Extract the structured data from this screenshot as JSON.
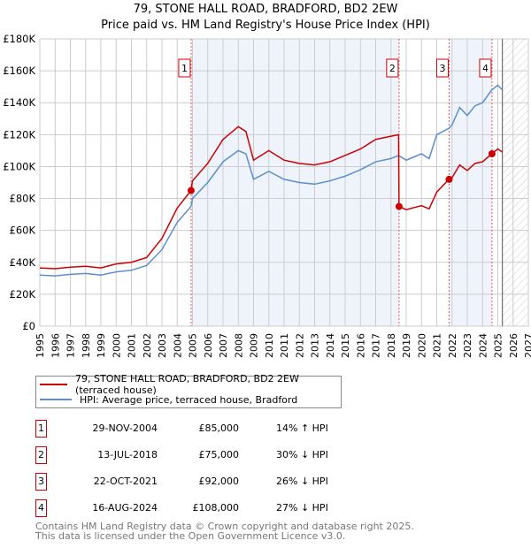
{
  "title": "79, STONE HALL ROAD, BRADFORD, BD2 2EW",
  "subtitle": "Price paid vs. HM Land Registry's House Price Index (HPI)",
  "colors": {
    "property": "#cc0000",
    "hpi": "#5b8fd0",
    "shade": "#eef3fc"
  },
  "chart_data": {
    "type": "line",
    "xlim": [
      1995,
      2027
    ],
    "ylim": [
      0,
      180000
    ],
    "x_ticks": [
      "1995",
      "1996",
      "1997",
      "1998",
      "1999",
      "2000",
      "2001",
      "2002",
      "2003",
      "2004",
      "2005",
      "2006",
      "2007",
      "2008",
      "2009",
      "2010",
      "2011",
      "2012",
      "2013",
      "2014",
      "2015",
      "2016",
      "2017",
      "2018",
      "2019",
      "2020",
      "2021",
      "2022",
      "2023",
      "2024",
      "2025",
      "2026",
      "2027"
    ],
    "y_ticks": [
      "£0",
      "£20K",
      "£40K",
      "£60K",
      "£80K",
      "£100K",
      "£120K",
      "£140K",
      "£160K",
      "£180K"
    ],
    "forecast_from": 2025.3,
    "series": [
      {
        "name": "79, STONE HALL ROAD, BRADFORD, BD2 2EW (terraced house)",
        "color": "#cc0000",
        "x": [
          1995,
          1996,
          1997,
          1998,
          1999,
          2000,
          2001,
          2002,
          2003,
          2004,
          2004.9,
          2005,
          2006,
          2007,
          2008,
          2008.5,
          2009,
          2010,
          2011,
          2012,
          2013,
          2014,
          2015,
          2016,
          2017,
          2018,
          2018.5,
          2018.53,
          2019,
          2020,
          2020.5,
          2021,
          2021.8,
          2022,
          2022.5,
          2023,
          2023.5,
          2024,
          2024.6,
          2025,
          2025.3
        ],
        "values": [
          36500,
          36000,
          37000,
          37500,
          36500,
          39000,
          40000,
          43000,
          55000,
          74000,
          85000,
          91000,
          102000,
          117000,
          125000,
          122000,
          104000,
          110000,
          104000,
          102000,
          101000,
          103000,
          107000,
          111000,
          117000,
          119000,
          120000,
          75000,
          73000,
          75500,
          73500,
          84000,
          92000,
          93000,
          101000,
          97500,
          102000,
          103000,
          108000,
          111000,
          109000
        ]
      },
      {
        "name": "HPI: Average price, terraced house, Bradford",
        "color": "#5b8fd0",
        "x": [
          1995,
          1996,
          1997,
          1998,
          1999,
          2000,
          2001,
          2002,
          2003,
          2004,
          2004.9,
          2005,
          2006,
          2007,
          2008,
          2008.5,
          2009,
          2010,
          2011,
          2012,
          2013,
          2014,
          2015,
          2016,
          2017,
          2018,
          2018.5,
          2019,
          2020,
          2020.5,
          2021,
          2021.8,
          2022,
          2022.5,
          2023,
          2023.5,
          2024,
          2024.6,
          2025,
          2025.3
        ],
        "values": [
          32000,
          31500,
          32500,
          33000,
          32000,
          34000,
          35000,
          38000,
          48000,
          65000,
          75000,
          80000,
          90000,
          103000,
          110000,
          108000,
          92000,
          97000,
          92000,
          90000,
          89000,
          91000,
          94000,
          98000,
          103000,
          105000,
          107000,
          104000,
          108000,
          105000,
          120000,
          124000,
          126000,
          137000,
          132000,
          138000,
          140000,
          148000,
          151000,
          148000
        ]
      }
    ],
    "sales": [
      {
        "n": "1",
        "x": 2004.91,
        "value": 85000
      },
      {
        "n": "2",
        "x": 2018.53,
        "value": 75000
      },
      {
        "n": "3",
        "x": 2021.81,
        "value": 92000
      },
      {
        "n": "4",
        "x": 2024.62,
        "value": 108000
      }
    ]
  },
  "legend": {
    "property": "79, STONE HALL ROAD, BRADFORD, BD2 2EW (terraced house)",
    "hpi": "HPI: Average price, terraced house, Bradford"
  },
  "sales_table": [
    {
      "n": "1",
      "date": "29-NOV-2004",
      "price": "£85,000",
      "hpi": "14% ↑ HPI"
    },
    {
      "n": "2",
      "date": "13-JUL-2018",
      "price": "£75,000",
      "hpi": "30% ↓ HPI"
    },
    {
      "n": "3",
      "date": "22-OCT-2021",
      "price": "£92,000",
      "hpi": "26% ↓ HPI"
    },
    {
      "n": "4",
      "date": "16-AUG-2024",
      "price": "£108,000",
      "hpi": "27% ↓ HPI"
    }
  ],
  "footer": [
    "Contains HM Land Registry data © Crown copyright and database right 2025.",
    "This data is licensed under the Open Government Licence v3.0."
  ]
}
